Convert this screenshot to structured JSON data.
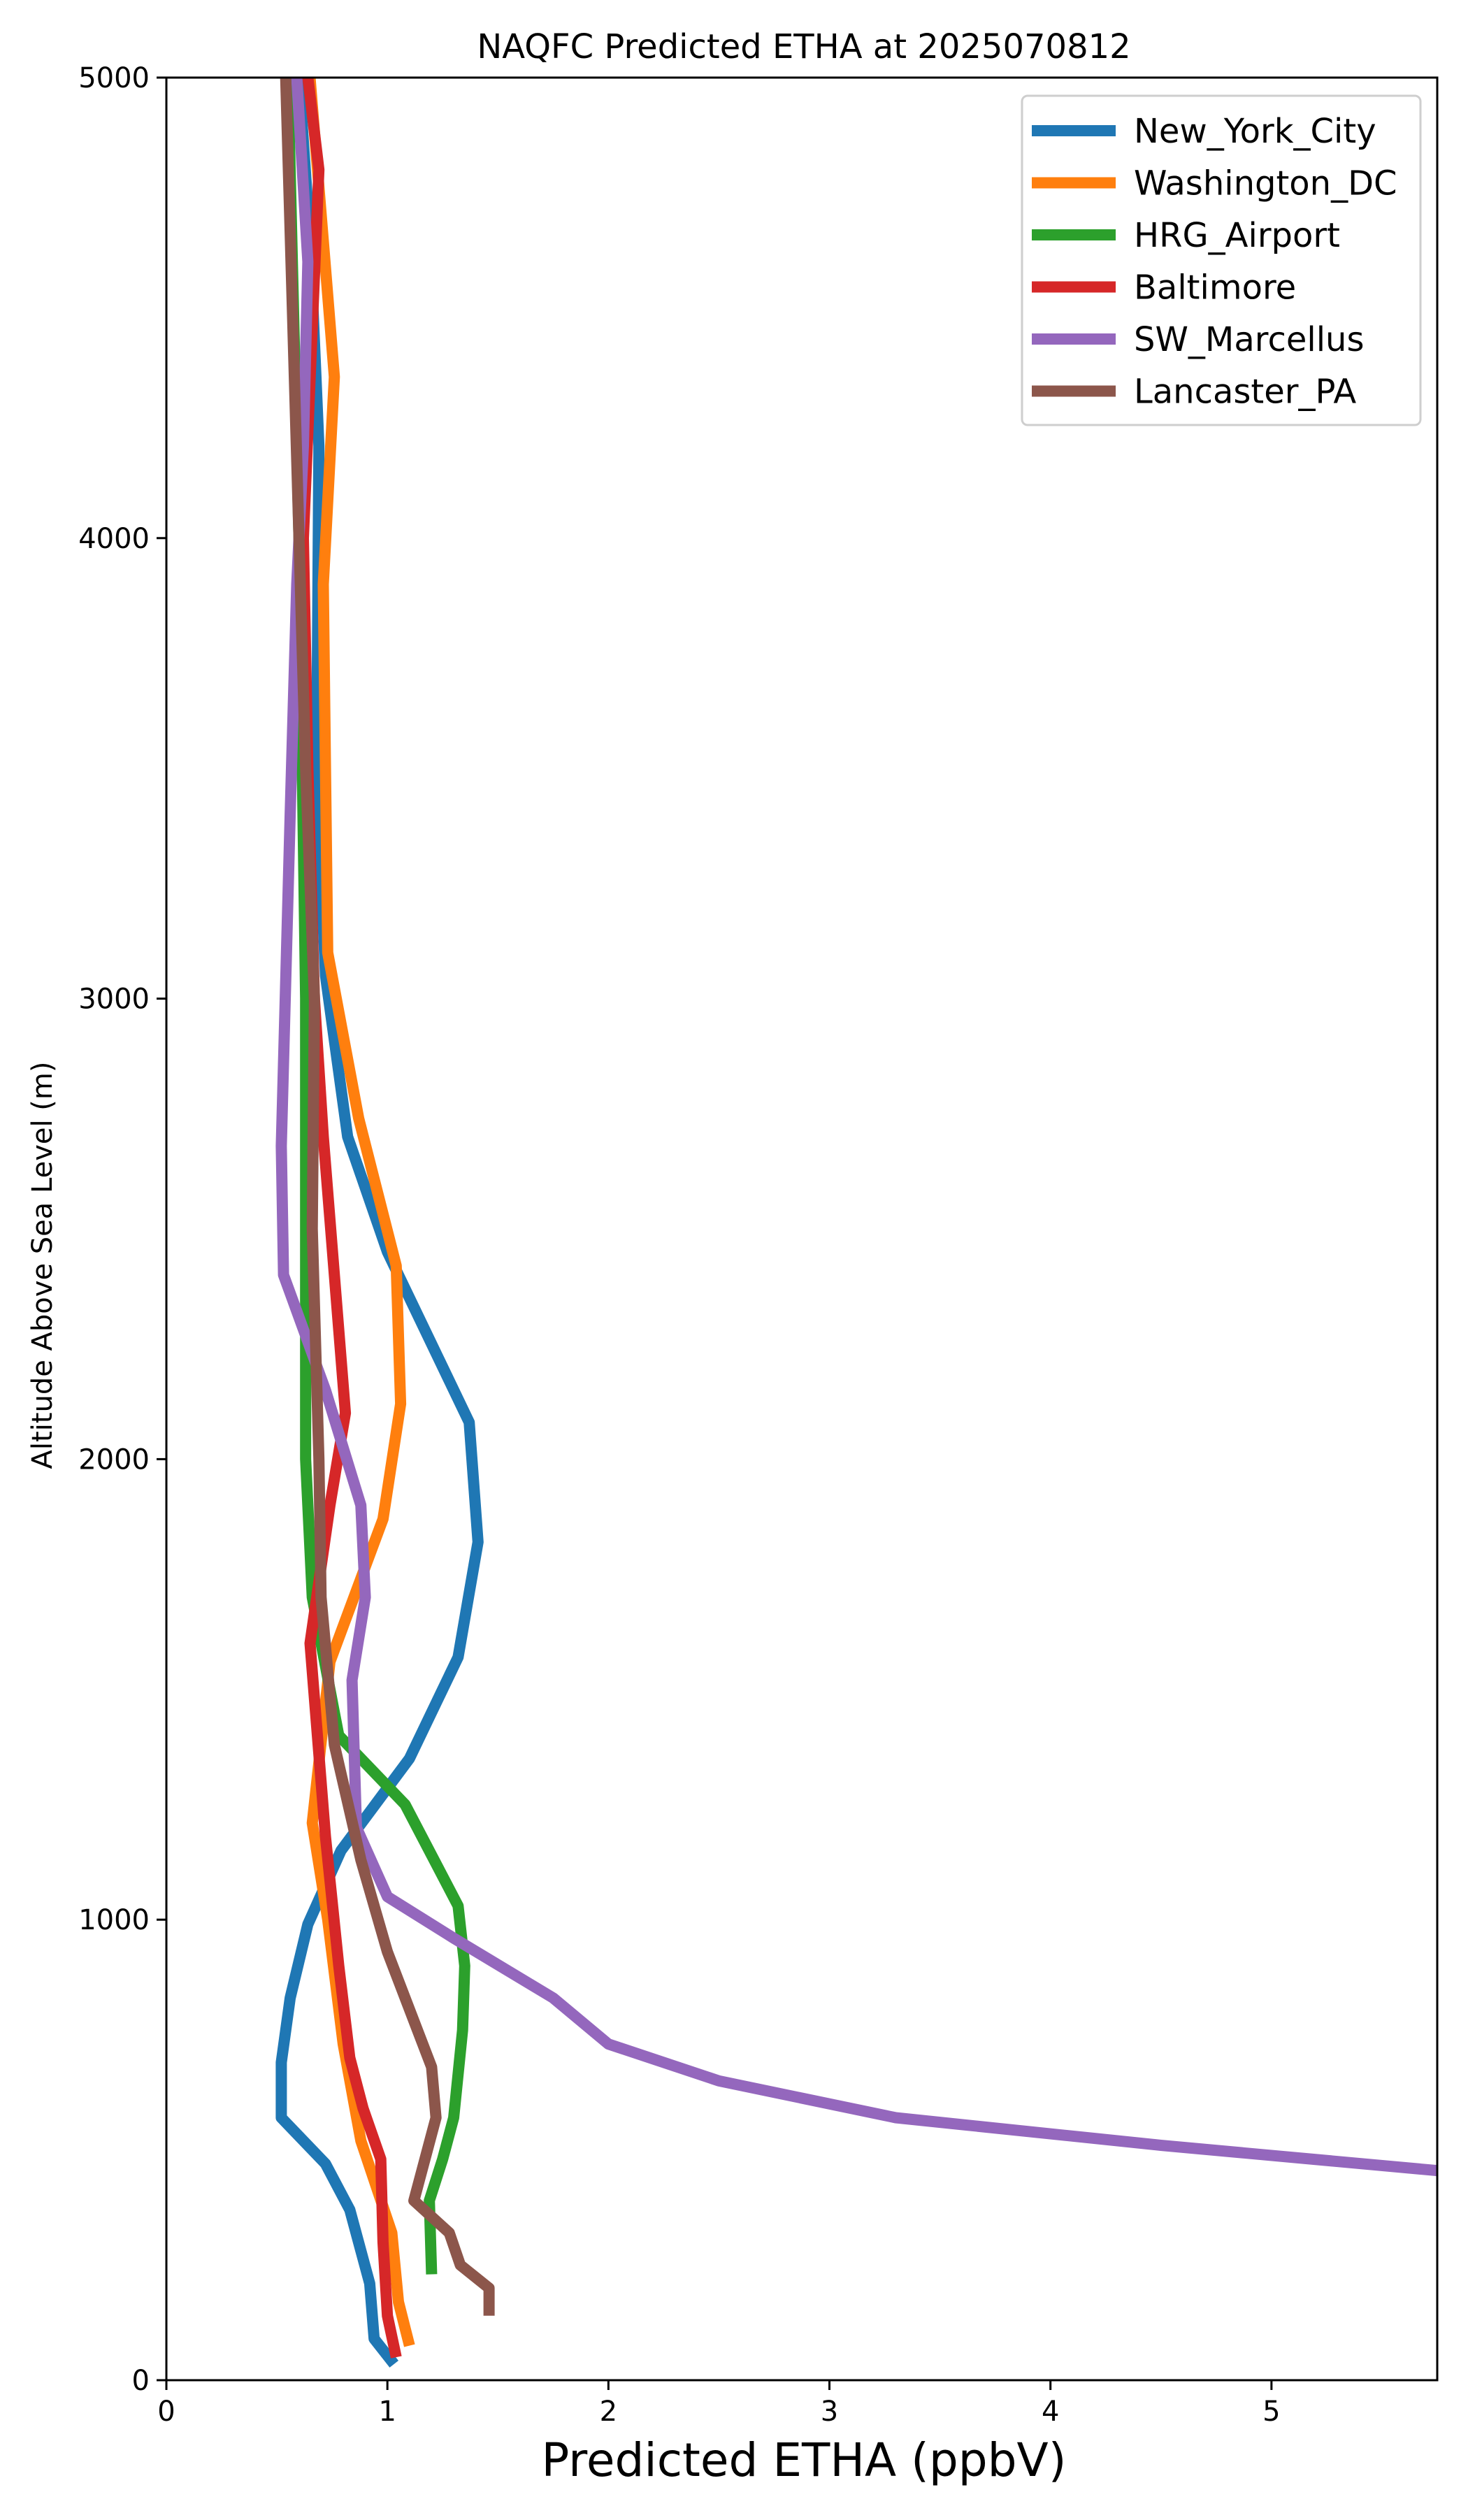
{
  "chart_data": {
    "type": "line",
    "title": "NAQFC Predicted ETHA at 2025070812",
    "xlabel": "Predicted ETHA (ppbV)",
    "ylabel": "Altitude Above Sea Level (m)",
    "xlim": [
      0,
      5.75
    ],
    "ylim": [
      0,
      5000
    ],
    "x_ticks": [
      0,
      1,
      2,
      3,
      4,
      5
    ],
    "y_ticks": [
      0,
      1000,
      2000,
      3000,
      4000,
      5000
    ],
    "grid": false,
    "legend_position": "top-right",
    "series": [
      {
        "name": "New_York_City",
        "color": "#1f77b4",
        "points": [
          [
            1.03,
            35
          ],
          [
            0.94,
            90
          ],
          [
            0.92,
            210
          ],
          [
            0.83,
            370
          ],
          [
            0.72,
            470
          ],
          [
            0.52,
            570
          ],
          [
            0.52,
            690
          ],
          [
            0.56,
            830
          ],
          [
            0.64,
            990
          ],
          [
            0.79,
            1150
          ],
          [
            1.1,
            1350
          ],
          [
            1.32,
            1570
          ],
          [
            1.41,
            1820
          ],
          [
            1.37,
            2080
          ],
          [
            1.0,
            2450
          ],
          [
            0.82,
            2700
          ],
          [
            0.72,
            3050
          ],
          [
            0.68,
            3500
          ],
          [
            0.69,
            4200
          ],
          [
            0.65,
            4650
          ],
          [
            0.6,
            5000
          ]
        ]
      },
      {
        "name": "Washington_DC",
        "color": "#ff7f0e",
        "points": [
          [
            1.1,
            75
          ],
          [
            1.05,
            170
          ],
          [
            1.02,
            320
          ],
          [
            0.88,
            520
          ],
          [
            0.8,
            730
          ],
          [
            0.73,
            1000
          ],
          [
            0.66,
            1210
          ],
          [
            0.74,
            1560
          ],
          [
            0.98,
            1870
          ],
          [
            1.06,
            2120
          ],
          [
            1.04,
            2420
          ],
          [
            0.87,
            2740
          ],
          [
            0.73,
            3100
          ],
          [
            0.72,
            3500
          ],
          [
            0.71,
            3900
          ],
          [
            0.76,
            4350
          ],
          [
            0.65,
            5000
          ]
        ]
      },
      {
        "name": "HRG_Airport",
        "color": "#2ca02c",
        "points": [
          [
            1.2,
            230
          ],
          [
            1.19,
            390
          ],
          [
            1.25,
            480
          ],
          [
            1.3,
            570
          ],
          [
            1.34,
            760
          ],
          [
            1.35,
            900
          ],
          [
            1.32,
            1030
          ],
          [
            1.08,
            1250
          ],
          [
            0.78,
            1400
          ],
          [
            0.66,
            1700
          ],
          [
            0.63,
            2000
          ],
          [
            0.63,
            3000
          ],
          [
            0.6,
            4000
          ],
          [
            0.55,
            5000
          ]
        ]
      },
      {
        "name": "Baltimore",
        "color": "#d62728",
        "points": [
          [
            1.04,
            50
          ],
          [
            1.0,
            140
          ],
          [
            0.98,
            300
          ],
          [
            0.97,
            480
          ],
          [
            0.89,
            590
          ],
          [
            0.83,
            700
          ],
          [
            0.78,
            900
          ],
          [
            0.72,
            1180
          ],
          [
            0.65,
            1600
          ],
          [
            0.74,
            1900
          ],
          [
            0.81,
            2100
          ],
          [
            0.76,
            2400
          ],
          [
            0.71,
            2700
          ],
          [
            0.67,
            3000
          ],
          [
            0.64,
            3500
          ],
          [
            0.62,
            4000
          ],
          [
            0.69,
            4800
          ],
          [
            0.64,
            5000
          ]
        ]
      },
      {
        "name": "SW_Marcellus",
        "color": "#9467bd",
        "points": [
          [
            5.75,
            455
          ],
          [
            4.5,
            510
          ],
          [
            3.3,
            570
          ],
          [
            2.5,
            650
          ],
          [
            2.0,
            730
          ],
          [
            1.75,
            830
          ],
          [
            1.3,
            960
          ],
          [
            1.0,
            1050
          ],
          [
            0.86,
            1200
          ],
          [
            0.84,
            1520
          ],
          [
            0.9,
            1700
          ],
          [
            0.88,
            1900
          ],
          [
            0.72,
            2150
          ],
          [
            0.53,
            2400
          ],
          [
            0.52,
            2680
          ],
          [
            0.56,
            3400
          ],
          [
            0.59,
            3900
          ],
          [
            0.62,
            4200
          ],
          [
            0.64,
            4600
          ],
          [
            0.59,
            5000
          ]
        ]
      },
      {
        "name": "Lancaster_PA",
        "color": "#8c564b",
        "points": [
          [
            1.46,
            140
          ],
          [
            1.46,
            200
          ],
          [
            1.33,
            250
          ],
          [
            1.28,
            320
          ],
          [
            1.12,
            390
          ],
          [
            1.22,
            570
          ],
          [
            1.2,
            680
          ],
          [
            1.0,
            930
          ],
          [
            0.88,
            1130
          ],
          [
            0.76,
            1380
          ],
          [
            0.7,
            1700
          ],
          [
            0.69,
            2000
          ],
          [
            0.66,
            2500
          ],
          [
            0.67,
            3000
          ],
          [
            0.63,
            3500
          ],
          [
            0.6,
            4000
          ],
          [
            0.57,
            4500
          ],
          [
            0.54,
            5000
          ]
        ]
      }
    ]
  }
}
